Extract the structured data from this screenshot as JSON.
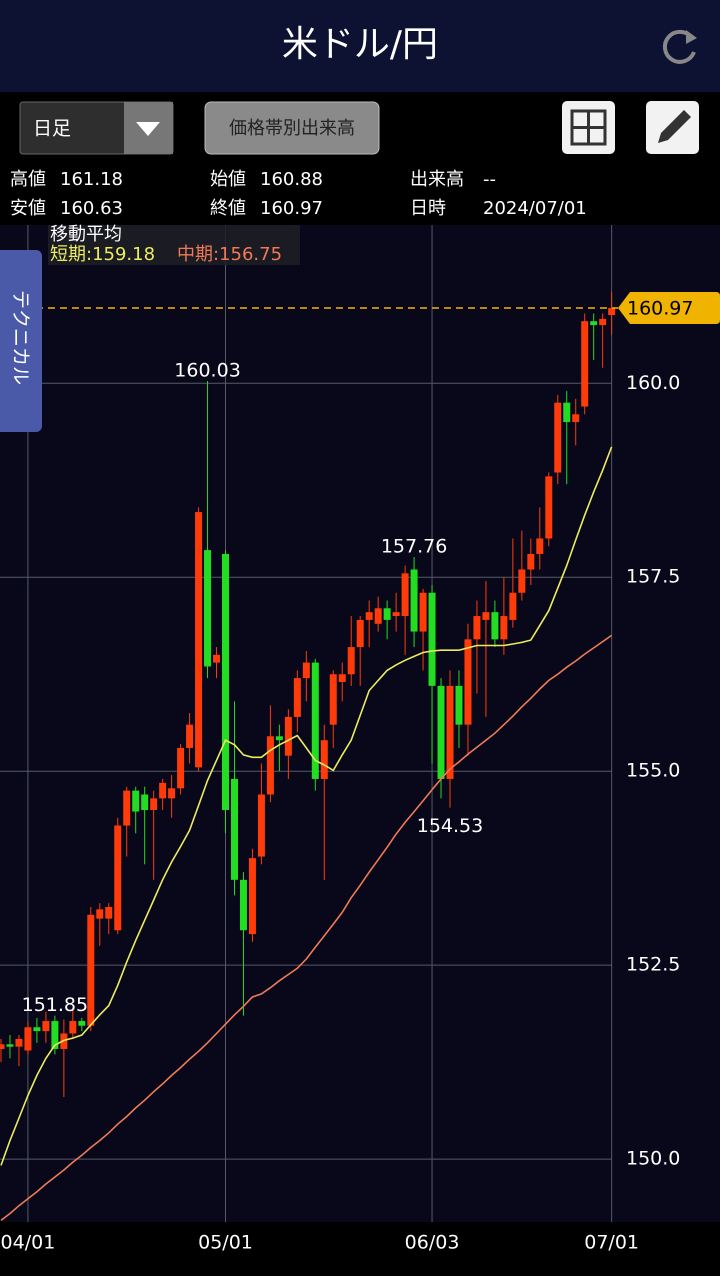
{
  "header": {
    "title": "米ドル/円"
  },
  "toolbar": {
    "period": "日足",
    "volume_button": "価格帯別出来高"
  },
  "info": [
    [
      "高値",
      "161.18"
    ],
    [
      "始値",
      "160.88"
    ],
    [
      "出来高",
      "--"
    ],
    [
      "安値",
      "160.63"
    ],
    [
      "終値",
      "160.97"
    ],
    [
      "日時",
      "2024/07/01"
    ]
  ],
  "side_tab": "テクニカル",
  "chart_data": {
    "type": "candlestick",
    "categories": [
      null,
      null,
      null,
      "04/01",
      null,
      null,
      null,
      null,
      null,
      null,
      null,
      null,
      null,
      null,
      null,
      null,
      null,
      null,
      null,
      null,
      null,
      null,
      null,
      null,
      null,
      "05/01",
      null,
      null,
      null,
      null,
      null,
      null,
      null,
      null,
      null,
      null,
      null,
      null,
      null,
      null,
      null,
      null,
      null,
      null,
      null,
      null,
      null,
      null,
      "06/03",
      null,
      null,
      null,
      null,
      null,
      null,
      null,
      null,
      null,
      null,
      null,
      null,
      null,
      null,
      null,
      null,
      null,
      null,
      null,
      "07/01"
    ],
    "open": [
      151.42,
      151.48,
      151.45,
      151.4,
      151.7,
      151.65,
      151.78,
      151.42,
      151.62,
      151.78,
      151.72,
      153.1,
      153.1,
      152.95,
      154.3,
      154.75,
      154.7,
      154.5,
      154.65,
      154.65,
      154.78,
      155.3,
      155.05,
      157.85,
      156.4,
      157.8,
      154.9,
      153.6,
      152.9,
      153.9,
      154.7,
      155.45,
      155.2,
      155.7,
      156.2,
      156.4,
      154.9,
      155.6,
      156.15,
      156.25,
      156.6,
      156.95,
      156.9,
      157.1,
      157.0,
      157.0,
      157.6,
      156.8,
      157.3,
      156.1,
      154.9,
      156.1,
      155.6,
      156.7,
      156.95,
      157.05,
      156.7,
      156.95,
      157.3,
      157.6,
      157.8,
      158.0,
      158.85,
      159.75,
      159.5,
      159.7,
      160.8,
      160.75,
      160.88
    ],
    "high": [
      151.55,
      151.6,
      151.6,
      151.78,
      151.82,
      151.9,
      151.85,
      151.8,
      151.95,
      151.82,
      153.25,
      153.3,
      153.3,
      154.4,
      154.8,
      154.8,
      154.8,
      154.75,
      154.9,
      154.95,
      155.35,
      155.75,
      158.4,
      160.03,
      156.6,
      157.85,
      155.9,
      153.7,
      154.0,
      155.1,
      155.85,
      155.6,
      155.8,
      156.3,
      156.55,
      156.45,
      155.6,
      156.3,
      156.4,
      157.0,
      157.0,
      157.2,
      157.25,
      157.2,
      157.3,
      157.65,
      157.76,
      157.35,
      157.4,
      156.2,
      156.3,
      156.3,
      156.9,
      157.2,
      157.45,
      157.2,
      157.5,
      158.0,
      158.1,
      158.0,
      158.4,
      158.85,
      159.85,
      159.9,
      159.8,
      160.9,
      160.9,
      160.9,
      161.18
    ],
    "low": [
      151.25,
      151.3,
      151.2,
      151.35,
      151.5,
      151.5,
      151.35,
      150.8,
      151.55,
      151.65,
      151.65,
      152.75,
      152.9,
      152.9,
      153.9,
      154.2,
      153.8,
      153.6,
      154.5,
      154.4,
      154.7,
      155.1,
      155.0,
      156.2,
      156.2,
      154.2,
      153.4,
      151.85,
      152.8,
      153.8,
      154.6,
      155.0,
      154.9,
      155.5,
      155.9,
      154.75,
      153.6,
      155.3,
      155.9,
      156.1,
      156.1,
      156.6,
      156.8,
      156.7,
      156.8,
      156.5,
      156.6,
      156.3,
      155.1,
      154.65,
      154.53,
      155.3,
      155.2,
      156.0,
      155.7,
      156.6,
      156.5,
      156.85,
      157.2,
      157.4,
      157.6,
      157.9,
      158.7,
      158.7,
      159.2,
      159.6,
      160.3,
      160.2,
      160.63
    ],
    "close": [
      151.48,
      151.45,
      151.55,
      151.7,
      151.65,
      151.78,
      151.42,
      151.62,
      151.78,
      151.72,
      153.15,
      153.22,
      153.25,
      154.3,
      154.75,
      154.48,
      154.5,
      154.65,
      154.85,
      154.78,
      155.3,
      155.6,
      158.34,
      156.35,
      156.5,
      154.5,
      153.6,
      152.95,
      153.88,
      154.7,
      155.45,
      155.4,
      155.7,
      156.2,
      156.4,
      154.9,
      155.4,
      156.25,
      156.25,
      156.6,
      156.95,
      157.05,
      157.1,
      156.95,
      157.05,
      157.55,
      156.8,
      157.3,
      156.1,
      154.9,
      156.1,
      155.6,
      156.7,
      157.0,
      157.05,
      156.7,
      157.0,
      157.3,
      157.6,
      157.8,
      158.0,
      158.8,
      159.75,
      159.5,
      159.6,
      160.8,
      160.75,
      160.83,
      160.97
    ],
    "up_color": "#ff3b0a",
    "down_color": "#22dd22",
    "legend_title": "移動平均",
    "series": [
      {
        "name": "短期:159.18",
        "color": "#ecec5e",
        "values": [
          149.92,
          150.24,
          150.53,
          150.82,
          151.08,
          151.3,
          151.47,
          151.53,
          151.56,
          151.6,
          151.73,
          151.86,
          151.98,
          152.24,
          152.54,
          152.82,
          153.08,
          153.34,
          153.6,
          153.83,
          154.03,
          154.24,
          154.56,
          154.88,
          155.14,
          155.4,
          155.34,
          155.21,
          155.18,
          155.18,
          155.27,
          155.34,
          155.4,
          155.46,
          155.3,
          155.14,
          155.08,
          155.01,
          155.21,
          155.4,
          155.72,
          156.04,
          156.17,
          156.3,
          156.37,
          156.43,
          156.48,
          156.53,
          156.55,
          156.56,
          156.56,
          156.56,
          156.59,
          156.62,
          156.62,
          156.62,
          156.62,
          156.64,
          156.66,
          156.69,
          156.88,
          157.07,
          157.36,
          157.65,
          157.98,
          158.3,
          158.6,
          158.88,
          159.18
        ]
      },
      {
        "name": "中期:156.75",
        "color": "#f07a55",
        "values": [
          149.21,
          149.3,
          149.4,
          149.49,
          149.58,
          149.68,
          149.77,
          149.86,
          149.96,
          150.05,
          150.15,
          150.24,
          150.34,
          150.45,
          150.55,
          150.66,
          150.76,
          150.87,
          150.97,
          151.08,
          151.18,
          151.29,
          151.39,
          151.5,
          151.62,
          151.74,
          151.86,
          151.97,
          152.09,
          152.13,
          152.21,
          152.3,
          152.38,
          152.46,
          152.58,
          152.73,
          152.88,
          153.03,
          153.18,
          153.37,
          153.53,
          153.7,
          153.86,
          154.02,
          154.19,
          154.34,
          154.48,
          154.62,
          154.76,
          154.9,
          155.03,
          155.12,
          155.22,
          155.31,
          155.4,
          155.49,
          155.6,
          155.71,
          155.83,
          155.94,
          156.06,
          156.17,
          156.25,
          156.34,
          156.42,
          156.51,
          156.59,
          156.67,
          156.75
        ]
      }
    ],
    "annotations": [
      160.03,
      157.76,
      154.53,
      151.85
    ],
    "last_price": 160.97,
    "last_price_color": "#f0b400",
    "ylim": [
      149.19,
      162.04
    ],
    "yticks": [
      {
        "value": 150,
        "label": "150.0"
      },
      {
        "value": 152.5,
        "label": "152.5"
      },
      {
        "value": 155,
        "label": "155.0"
      },
      {
        "value": 157.5,
        "label": "157.5"
      },
      {
        "value": 160,
        "label": "160.0"
      }
    ],
    "grid": true
  }
}
